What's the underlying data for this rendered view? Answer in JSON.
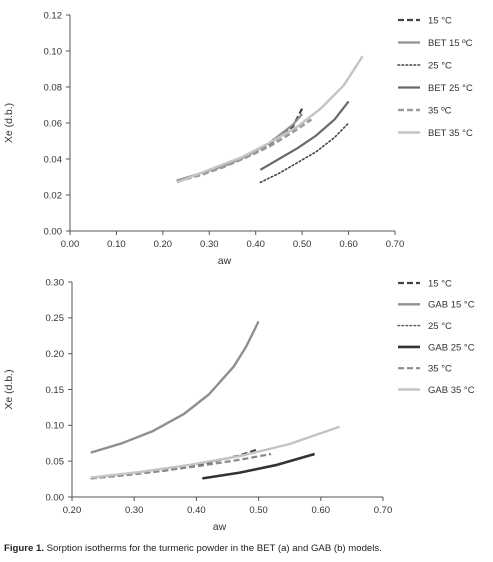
{
  "caption": {
    "label": "Figure 1.",
    "text": "Sorption isotherms for the turmeric powder in the BET (a) and GAB (b) models."
  },
  "chart_data": [
    {
      "type": "line",
      "xlabel": "aw",
      "ylabel": "Xe (d.b.)",
      "xlim": [
        0,
        0.7
      ],
      "ylim": [
        0,
        0.12
      ],
      "xticks": [
        "0.00",
        "0.10",
        "0.20",
        "0.30",
        "0.40",
        "0.50",
        "0.60",
        "0.70"
      ],
      "yticks": [
        "0.00",
        "0.02",
        "0.04",
        "0.06",
        "0.08",
        "0.10",
        "0.12"
      ],
      "legend_position": "right",
      "series": [
        {
          "name": "15 °C",
          "style": "dashed",
          "color": "#444444",
          "width": 2.2,
          "x": [
            0.23,
            0.28,
            0.33,
            0.38,
            0.43,
            0.48,
            0.5
          ],
          "y": [
            0.028,
            0.0315,
            0.0355,
            0.041,
            0.048,
            0.058,
            0.068
          ]
        },
        {
          "name": "BET 15 ºC",
          "style": "solid",
          "color": "#8f8f8f",
          "width": 2.2,
          "x": [
            0.23,
            0.28,
            0.33,
            0.38,
            0.43,
            0.48,
            0.5
          ],
          "y": [
            0.028,
            0.032,
            0.036,
            0.0415,
            0.049,
            0.059,
            0.065
          ]
        },
        {
          "name": "25 °C",
          "style": "dotted",
          "color": "#444444",
          "width": 1.6,
          "x": [
            0.41,
            0.45,
            0.49,
            0.53,
            0.57,
            0.6
          ],
          "y": [
            0.027,
            0.032,
            0.038,
            0.044,
            0.052,
            0.06
          ]
        },
        {
          "name": "BET 25 °C",
          "style": "solid",
          "color": "#6a6a6a",
          "width": 2.2,
          "x": [
            0.41,
            0.45,
            0.49,
            0.53,
            0.57,
            0.6
          ],
          "y": [
            0.034,
            0.04,
            0.046,
            0.053,
            0.062,
            0.072
          ]
        },
        {
          "name": "35 ºC",
          "style": "dashed",
          "color": "#9a9a9a",
          "width": 2.6,
          "x": [
            0.23,
            0.28,
            0.33,
            0.38,
            0.43,
            0.48,
            0.52
          ],
          "y": [
            0.0275,
            0.031,
            0.0355,
            0.041,
            0.047,
            0.055,
            0.062
          ]
        },
        {
          "name": "BET 35 °C",
          "style": "solid",
          "color": "#c4c4c4",
          "width": 2.4,
          "x": [
            0.23,
            0.3,
            0.37,
            0.43,
            0.49,
            0.54,
            0.59,
            0.63
          ],
          "y": [
            0.027,
            0.034,
            0.041,
            0.049,
            0.058,
            0.068,
            0.081,
            0.097
          ]
        }
      ]
    },
    {
      "type": "line",
      "xlabel": "aw",
      "ylabel": "Xe (d.b.)",
      "xlim": [
        0.2,
        0.7
      ],
      "ylim": [
        0,
        0.3
      ],
      "xticks": [
        "0.20",
        "0.30",
        "0.40",
        "0.50",
        "0.60",
        "0.70"
      ],
      "yticks": [
        "0.00",
        "0.05",
        "0.10",
        "0.15",
        "0.20",
        "0.25",
        "0.30"
      ],
      "legend_position": "right",
      "series": [
        {
          "name": "15 °C",
          "style": "dashed",
          "color": "#444444",
          "width": 2.2,
          "x": [
            0.23,
            0.29,
            0.35,
            0.41,
            0.47,
            0.5
          ],
          "y": [
            0.026,
            0.031,
            0.037,
            0.046,
            0.058,
            0.067
          ]
        },
        {
          "name": "GAB 15 °C",
          "style": "solid",
          "color": "#8f8f8f",
          "width": 2.4,
          "x": [
            0.23,
            0.28,
            0.33,
            0.38,
            0.42,
            0.46,
            0.48,
            0.5
          ],
          "y": [
            0.062,
            0.075,
            0.092,
            0.116,
            0.143,
            0.182,
            0.21,
            0.245
          ]
        },
        {
          "name": "25 °C",
          "style": "dotted",
          "color": "#555555",
          "width": 1.4,
          "x": [
            0.41,
            0.47,
            0.53,
            0.59
          ],
          "y": [
            0.026,
            0.034,
            0.045,
            0.059
          ]
        },
        {
          "name": "GAB 25 °C",
          "style": "solid",
          "color": "#333333",
          "width": 2.6,
          "x": [
            0.41,
            0.47,
            0.53,
            0.59
          ],
          "y": [
            0.026,
            0.034,
            0.045,
            0.06
          ]
        },
        {
          "name": "35 °C",
          "style": "dashed",
          "color": "#8a8a8a",
          "width": 2.2,
          "x": [
            0.23,
            0.29,
            0.35,
            0.41,
            0.47,
            0.52
          ],
          "y": [
            0.026,
            0.031,
            0.037,
            0.044,
            0.052,
            0.06
          ]
        },
        {
          "name": "GAB 35 °C",
          "style": "solid",
          "color": "#c4c4c4",
          "width": 2.4,
          "x": [
            0.23,
            0.31,
            0.39,
            0.47,
            0.55,
            0.63
          ],
          "y": [
            0.027,
            0.035,
            0.045,
            0.057,
            0.074,
            0.098
          ]
        }
      ]
    }
  ]
}
